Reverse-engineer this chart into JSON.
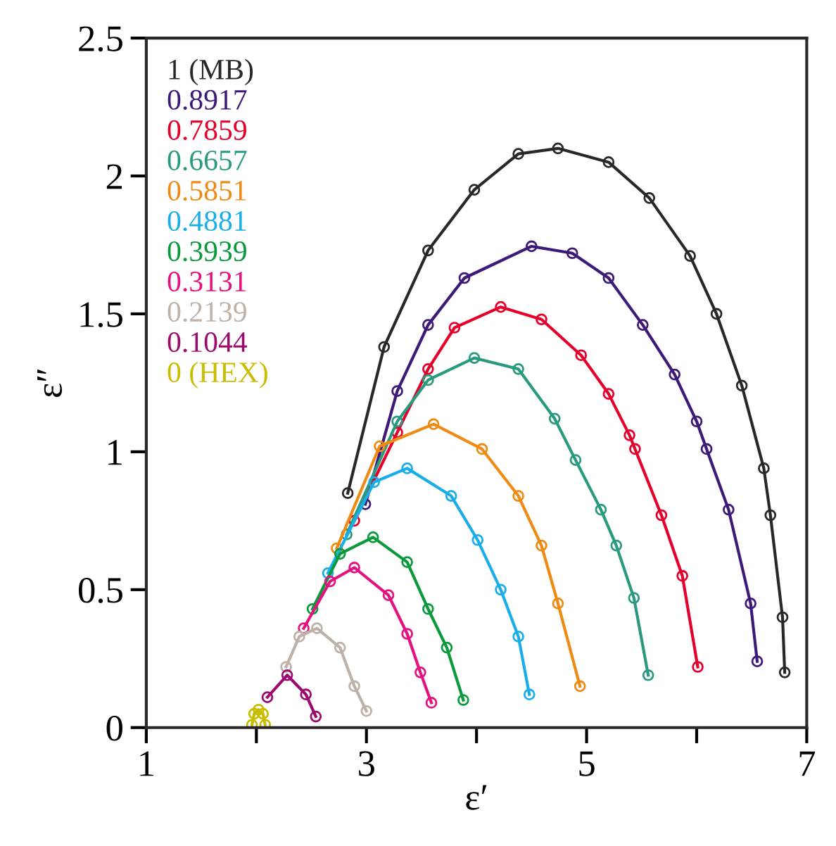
{
  "chart_data": {
    "type": "line",
    "xlabel": "ε′",
    "ylabel": "ε″",
    "marker": "circle",
    "legend": "top left",
    "grid": false,
    "xlim": [
      1,
      7
    ],
    "xticks": [
      1,
      {
        "value": 2,
        "label": null
      },
      3,
      {
        "value": 4,
        "label": null
      },
      5,
      {
        "value": 6,
        "label": null
      },
      7
    ],
    "ylim": [
      0,
      2.5
    ],
    "yticks": [
      0,
      0.5,
      1,
      1.5,
      2,
      2.5
    ],
    "series": [
      {
        "name": "1 (MB)",
        "color": "#2b2629",
        "x": [
          2.83,
          3.16,
          3.56,
          3.98,
          4.38,
          4.74,
          5.2,
          5.57,
          5.94,
          6.18,
          6.41,
          6.61,
          6.67,
          6.78,
          6.8
        ],
        "values": [
          0.85,
          1.38,
          1.73,
          1.95,
          2.08,
          2.1,
          2.05,
          1.92,
          1.71,
          1.5,
          1.24,
          0.94,
          0.77,
          0.4,
          0.2
        ]
      },
      {
        "name": "0.8917",
        "color": "#3d1a78",
        "x": [
          2.99,
          3.28,
          3.56,
          3.89,
          4.5,
          4.87,
          5.2,
          5.51,
          5.8,
          6.0,
          6.09,
          6.29,
          6.49,
          6.55
        ],
        "values": [
          0.81,
          1.22,
          1.46,
          1.63,
          1.745,
          1.72,
          1.63,
          1.46,
          1.28,
          1.11,
          1.01,
          0.79,
          0.45,
          0.24
        ]
      },
      {
        "name": "0.7859",
        "color": "#e5002b",
        "x": [
          2.89,
          3.28,
          3.56,
          3.8,
          4.22,
          4.59,
          4.95,
          5.2,
          5.39,
          5.44,
          5.68,
          5.87,
          6.01
        ],
        "values": [
          0.75,
          1.07,
          1.3,
          1.45,
          1.525,
          1.48,
          1.35,
          1.21,
          1.06,
          1.01,
          0.77,
          0.55,
          0.22
        ]
      },
      {
        "name": "0.6657",
        "color": "#2a9a7f",
        "x": [
          2.82,
          3.28,
          3.56,
          3.98,
          4.38,
          4.71,
          4.9,
          5.13,
          5.27,
          5.43,
          5.56
        ],
        "values": [
          0.7,
          1.11,
          1.26,
          1.34,
          1.3,
          1.12,
          0.97,
          0.79,
          0.66,
          0.47,
          0.19
        ]
      },
      {
        "name": "0.5851",
        "color": "#ef8a14",
        "x": [
          2.73,
          3.12,
          3.61,
          4.05,
          4.38,
          4.59,
          4.74,
          4.94
        ],
        "values": [
          0.65,
          1.02,
          1.1,
          1.01,
          0.84,
          0.66,
          0.45,
          0.15
        ]
      },
      {
        "name": "0.4881",
        "color": "#1aaee8",
        "x": [
          2.65,
          3.07,
          3.37,
          3.77,
          4.01,
          4.22,
          4.38,
          4.48
        ],
        "values": [
          0.56,
          0.89,
          0.94,
          0.84,
          0.68,
          0.5,
          0.33,
          0.12
        ]
      },
      {
        "name": "0.3939",
        "color": "#0a9a3c",
        "x": [
          2.51,
          2.76,
          3.06,
          3.37,
          3.56,
          3.73,
          3.88
        ],
        "values": [
          0.43,
          0.63,
          0.69,
          0.6,
          0.43,
          0.29,
          0.1
        ]
      },
      {
        "name": "0.3131",
        "color": "#e2137f",
        "x": [
          2.43,
          2.67,
          2.89,
          3.2,
          3.37,
          3.49,
          3.59
        ],
        "values": [
          0.36,
          0.53,
          0.58,
          0.48,
          0.34,
          0.2,
          0.09
        ]
      },
      {
        "name": "0.2139",
        "color": "#bdb1a8",
        "x": [
          2.27,
          2.39,
          2.55,
          2.76,
          2.89,
          3.0
        ],
        "values": [
          0.22,
          0.33,
          0.36,
          0.29,
          0.15,
          0.06
        ]
      },
      {
        "name": "0.1044",
        "color": "#9b0a6e",
        "x": [
          2.1,
          2.28,
          2.45,
          2.54
        ],
        "values": [
          0.11,
          0.19,
          0.12,
          0.04
        ]
      },
      {
        "name": "0 (HEX)",
        "color": "#c9bd00",
        "x": [
          1.96,
          1.98,
          2.02,
          2.06,
          2.08
        ],
        "values": [
          0.01,
          0.05,
          0.065,
          0.05,
          0.01
        ]
      }
    ]
  }
}
